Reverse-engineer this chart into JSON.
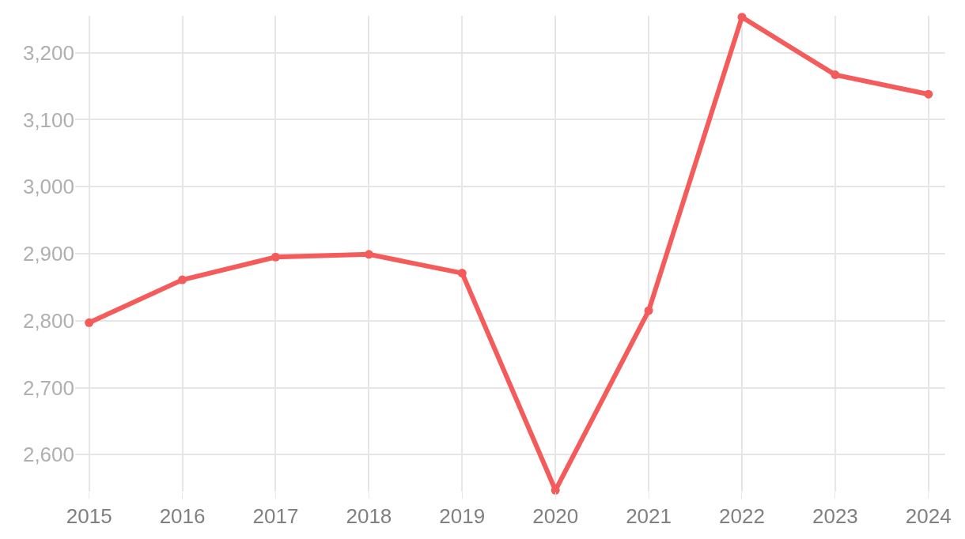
{
  "chart_data": {
    "type": "line",
    "x": [
      2015,
      2016,
      2017,
      2018,
      2019,
      2020,
      2021,
      2022,
      2023,
      2024
    ],
    "series": [
      {
        "color": "#f45b5b",
        "values": [
          2797,
          2861,
          2895,
          2899,
          2871,
          2547,
          2815,
          3253,
          3167,
          3138
        ]
      }
    ],
    "xlim": [
      2014.85,
      2024.18
    ],
    "xticks": [
      2015,
      2016,
      2017,
      2018,
      2019,
      2020,
      2021,
      2022,
      2023,
      2024
    ],
    "ylim": [
      2545,
      3255
    ],
    "yticks": [
      {
        "value": 2600,
        "label": "2,600"
      },
      {
        "value": 2700,
        "label": "2,700"
      },
      {
        "value": 2800,
        "label": "2,800"
      },
      {
        "value": 2900,
        "label": "2,900"
      },
      {
        "value": 3000,
        "label": "3,000"
      },
      {
        "value": 3100,
        "label": "3,100"
      },
      {
        "value": 3200,
        "label": "3,200"
      }
    ],
    "grid": true,
    "marker": "circle",
    "line_style": "solid"
  }
}
